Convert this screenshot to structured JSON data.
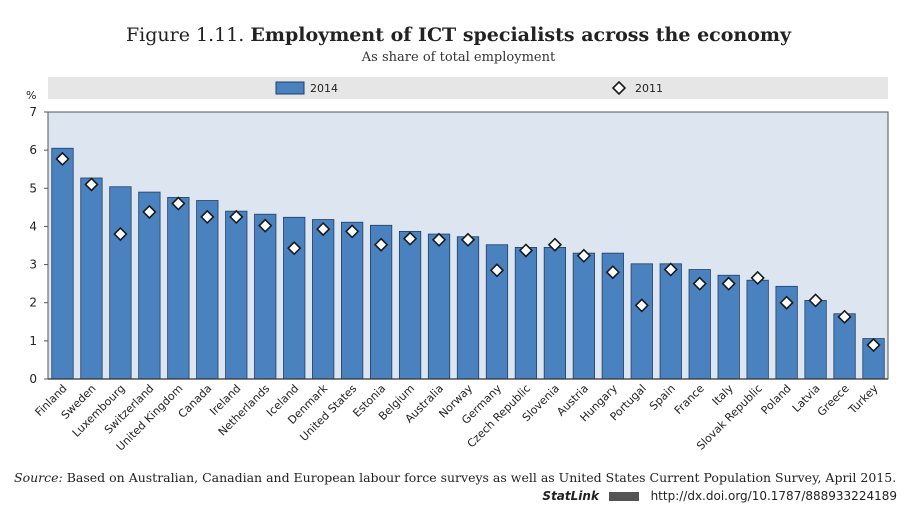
{
  "title": {
    "prefix": "Figure 1.11.",
    "main": "Employment of ICT specialists across the economy"
  },
  "subtitle": "As share of total employment",
  "source": {
    "label": "Source:",
    "text": "Based on Australian, Canadian and European labour force surveys as well as United States Current Population Survey, April 2015."
  },
  "statlink": {
    "brand": "StatLink",
    "url": "http://dx.doi.org/10.1787/888933224189"
  },
  "colors": {
    "bar": "#4a82c0",
    "bar_stroke": "#1f3f66",
    "plot_bg": "#dde6f0",
    "legend_bg": "#e6e6e6",
    "marker_fill": "#ffffff",
    "marker_stroke": "#1a1a1a"
  },
  "chart_data": {
    "type": "bar",
    "ylabel": "%",
    "ylim": [
      0,
      7
    ],
    "yticks": [
      0,
      1,
      2,
      3,
      4,
      5,
      6,
      7
    ],
    "grid": false,
    "legend_position": "top",
    "categories": [
      "Finland",
      "Sweden",
      "Luxembourg",
      "Switzerland",
      "United Kingdom",
      "Canada",
      "Ireland",
      "Netherlands",
      "Iceland",
      "Denmark",
      "United States",
      "Estonia",
      "Belgium",
      "Australia",
      "Norway",
      "Germany",
      "Czech Republic",
      "Slovenia",
      "Austria",
      "Hungary",
      "Portugal",
      "Spain",
      "France",
      "Italy",
      "Slovak Republic",
      "Poland",
      "Latvia",
      "Greece",
      "Turkey"
    ],
    "series": [
      {
        "name": "2014",
        "marker": "bar",
        "values": [
          6.05,
          5.27,
          5.04,
          4.9,
          4.76,
          4.68,
          4.4,
          4.32,
          4.24,
          4.18,
          4.11,
          4.03,
          3.87,
          3.8,
          3.73,
          3.52,
          3.45,
          3.45,
          3.3,
          3.3,
          3.02,
          3.02,
          2.87,
          2.72,
          2.59,
          2.43,
          2.06,
          1.71,
          1.06
        ]
      },
      {
        "name": "2011",
        "marker": "diamond",
        "values": [
          5.77,
          5.1,
          3.8,
          4.38,
          4.6,
          4.25,
          4.25,
          4.02,
          3.43,
          3.93,
          3.87,
          3.52,
          3.68,
          3.65,
          3.65,
          2.85,
          3.37,
          3.52,
          3.23,
          2.8,
          1.93,
          2.87,
          2.5,
          2.5,
          2.65,
          2.0,
          2.06,
          1.63,
          0.89
        ]
      }
    ]
  }
}
